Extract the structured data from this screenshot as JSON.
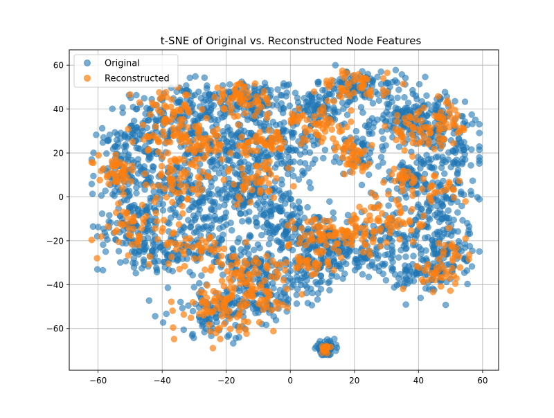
{
  "chart_data": {
    "type": "scatter",
    "title": "t-SNE of Original vs. Reconstructed Node Features",
    "xlabel": "",
    "ylabel": "",
    "xlim": [
      -69,
      65
    ],
    "ylim": [
      -79,
      67
    ],
    "xticks": [
      -60,
      -40,
      -20,
      0,
      20,
      40,
      60
    ],
    "yticks": [
      -60,
      -40,
      -20,
      0,
      20,
      40,
      60
    ],
    "grid": true,
    "legend": "top-left",
    "series": [
      {
        "name": "Original",
        "color": "#1f77b4",
        "alpha": 0.6,
        "clusters": [
          {
            "cx": -14,
            "cy": 44,
            "sx": 9,
            "sy": 5,
            "n": 140
          },
          {
            "cx": -35,
            "cy": 38,
            "sx": 6,
            "sy": 7,
            "n": 120
          },
          {
            "cx": -48,
            "cy": 28,
            "sx": 5,
            "sy": 7,
            "n": 80
          },
          {
            "cx": -25,
            "cy": 22,
            "sx": 8,
            "sy": 6,
            "n": 120
          },
          {
            "cx": -8,
            "cy": 22,
            "sx": 8,
            "sy": 8,
            "n": 120
          },
          {
            "cx": 5,
            "cy": 26,
            "sx": 6,
            "sy": 10,
            "n": 70
          },
          {
            "cx": -52,
            "cy": 8,
            "sx": 5,
            "sy": 8,
            "n": 90
          },
          {
            "cx": -38,
            "cy": 5,
            "sx": 6,
            "sy": 6,
            "n": 80
          },
          {
            "cx": -16,
            "cy": 4,
            "sx": 6,
            "sy": 6,
            "n": 100
          },
          {
            "cx": -5,
            "cy": -8,
            "sx": 6,
            "sy": 7,
            "n": 110
          },
          {
            "cx": -28,
            "cy": -10,
            "sx": 6,
            "sy": 6,
            "n": 80
          },
          {
            "cx": -48,
            "cy": -14,
            "sx": 6,
            "sy": 8,
            "n": 110
          },
          {
            "cx": -36,
            "cy": -25,
            "sx": 7,
            "sy": 4,
            "n": 90
          },
          {
            "cx": -14,
            "cy": -30,
            "sx": 7,
            "sy": 5,
            "n": 100
          },
          {
            "cx": 8,
            "cy": -18,
            "sx": 7,
            "sy": 6,
            "n": 120
          },
          {
            "cx": 18,
            "cy": -28,
            "sx": 8,
            "sy": 6,
            "n": 110
          },
          {
            "cx": 32,
            "cy": -18,
            "sx": 6,
            "sy": 8,
            "n": 90
          },
          {
            "cx": 48,
            "cy": -20,
            "sx": 5,
            "sy": 8,
            "n": 110
          },
          {
            "cx": 42,
            "cy": -36,
            "sx": 5,
            "sy": 5,
            "n": 70
          },
          {
            "cx": 22,
            "cy": 50,
            "sx": 7,
            "sy": 4,
            "n": 110
          },
          {
            "cx": 8,
            "cy": 40,
            "sx": 5,
            "sy": 4,
            "n": 60
          },
          {
            "cx": 33,
            "cy": 35,
            "sx": 6,
            "sy": 5,
            "n": 80
          },
          {
            "cx": 45,
            "cy": 35,
            "sx": 6,
            "sy": 7,
            "n": 120
          },
          {
            "cx": 50,
            "cy": 20,
            "sx": 5,
            "sy": 6,
            "n": 70
          },
          {
            "cx": 38,
            "cy": 8,
            "sx": 6,
            "sy": 5,
            "n": 80
          },
          {
            "cx": 47,
            "cy": -2,
            "sx": 5,
            "sy": 5,
            "n": 60
          },
          {
            "cx": 22,
            "cy": 20,
            "sx": 4,
            "sy": 6,
            "n": 40
          },
          {
            "cx": -22,
            "cy": -52,
            "sx": 8,
            "sy": 6,
            "n": 120
          },
          {
            "cx": -8,
            "cy": -45,
            "sx": 6,
            "sy": 6,
            "n": 80
          },
          {
            "cx": 5,
            "cy": -36,
            "sx": 6,
            "sy": 5,
            "n": 60
          },
          {
            "cx": 11,
            "cy": -69,
            "sx": 1.5,
            "sy": 1.5,
            "n": 60
          }
        ]
      },
      {
        "name": "Reconstructed",
        "color": "#ff7f0e",
        "alpha": 0.7,
        "clusters": [
          {
            "cx": -15,
            "cy": 44,
            "sx": 5,
            "sy": 4,
            "n": 60
          },
          {
            "cx": -38,
            "cy": 40,
            "sx": 4,
            "sy": 4,
            "n": 40
          },
          {
            "cx": -28,
            "cy": 24,
            "sx": 5,
            "sy": 4,
            "n": 50
          },
          {
            "cx": -40,
            "cy": 28,
            "sx": 4,
            "sy": 3,
            "n": 30
          },
          {
            "cx": -8,
            "cy": 24,
            "sx": 4,
            "sy": 3,
            "n": 40
          },
          {
            "cx": -54,
            "cy": 12,
            "sx": 3,
            "sy": 3,
            "n": 40
          },
          {
            "cx": -36,
            "cy": 8,
            "sx": 6,
            "sy": 6,
            "n": 60
          },
          {
            "cx": -12,
            "cy": 8,
            "sx": 5,
            "sy": 6,
            "n": 50
          },
          {
            "cx": -48,
            "cy": -14,
            "sx": 5,
            "sy": 6,
            "n": 50
          },
          {
            "cx": -30,
            "cy": -24,
            "sx": 5,
            "sy": 4,
            "n": 40
          },
          {
            "cx": -12,
            "cy": -34,
            "sx": 6,
            "sy": 5,
            "n": 50
          },
          {
            "cx": -22,
            "cy": -50,
            "sx": 6,
            "sy": 6,
            "n": 80
          },
          {
            "cx": -8,
            "cy": -45,
            "sx": 4,
            "sy": 5,
            "n": 30
          },
          {
            "cx": 6,
            "cy": -30,
            "sx": 3,
            "sy": 3,
            "n": 25
          },
          {
            "cx": 10,
            "cy": -18,
            "sx": 5,
            "sy": 5,
            "n": 50
          },
          {
            "cx": 20,
            "cy": -18,
            "sx": 4,
            "sy": 4,
            "n": 40
          },
          {
            "cx": 32,
            "cy": -10,
            "sx": 5,
            "sy": 6,
            "n": 50
          },
          {
            "cx": 46,
            "cy": -36,
            "sx": 3,
            "sy": 4,
            "n": 30
          },
          {
            "cx": 50,
            "cy": -25,
            "sx": 3,
            "sy": 4,
            "n": 20
          },
          {
            "cx": 20,
            "cy": 50,
            "sx": 5,
            "sy": 4,
            "n": 50
          },
          {
            "cx": 20,
            "cy": 18,
            "sx": 3,
            "sy": 4,
            "n": 40
          },
          {
            "cx": 10,
            "cy": 32,
            "sx": 5,
            "sy": 4,
            "n": 40
          },
          {
            "cx": 38,
            "cy": 30,
            "sx": 4,
            "sy": 5,
            "n": 40
          },
          {
            "cx": 48,
            "cy": 32,
            "sx": 3,
            "sy": 5,
            "n": 40
          },
          {
            "cx": 36,
            "cy": 8,
            "sx": 3,
            "sy": 3,
            "n": 25
          },
          {
            "cx": 47,
            "cy": 2,
            "sx": 3,
            "sy": 3,
            "n": 20
          },
          {
            "cx": 1,
            "cy": 36,
            "sx": 2,
            "sy": 2,
            "n": 12
          },
          {
            "cx": 11,
            "cy": -69,
            "sx": 0.8,
            "sy": 0.8,
            "n": 20
          }
        ]
      }
    ]
  }
}
